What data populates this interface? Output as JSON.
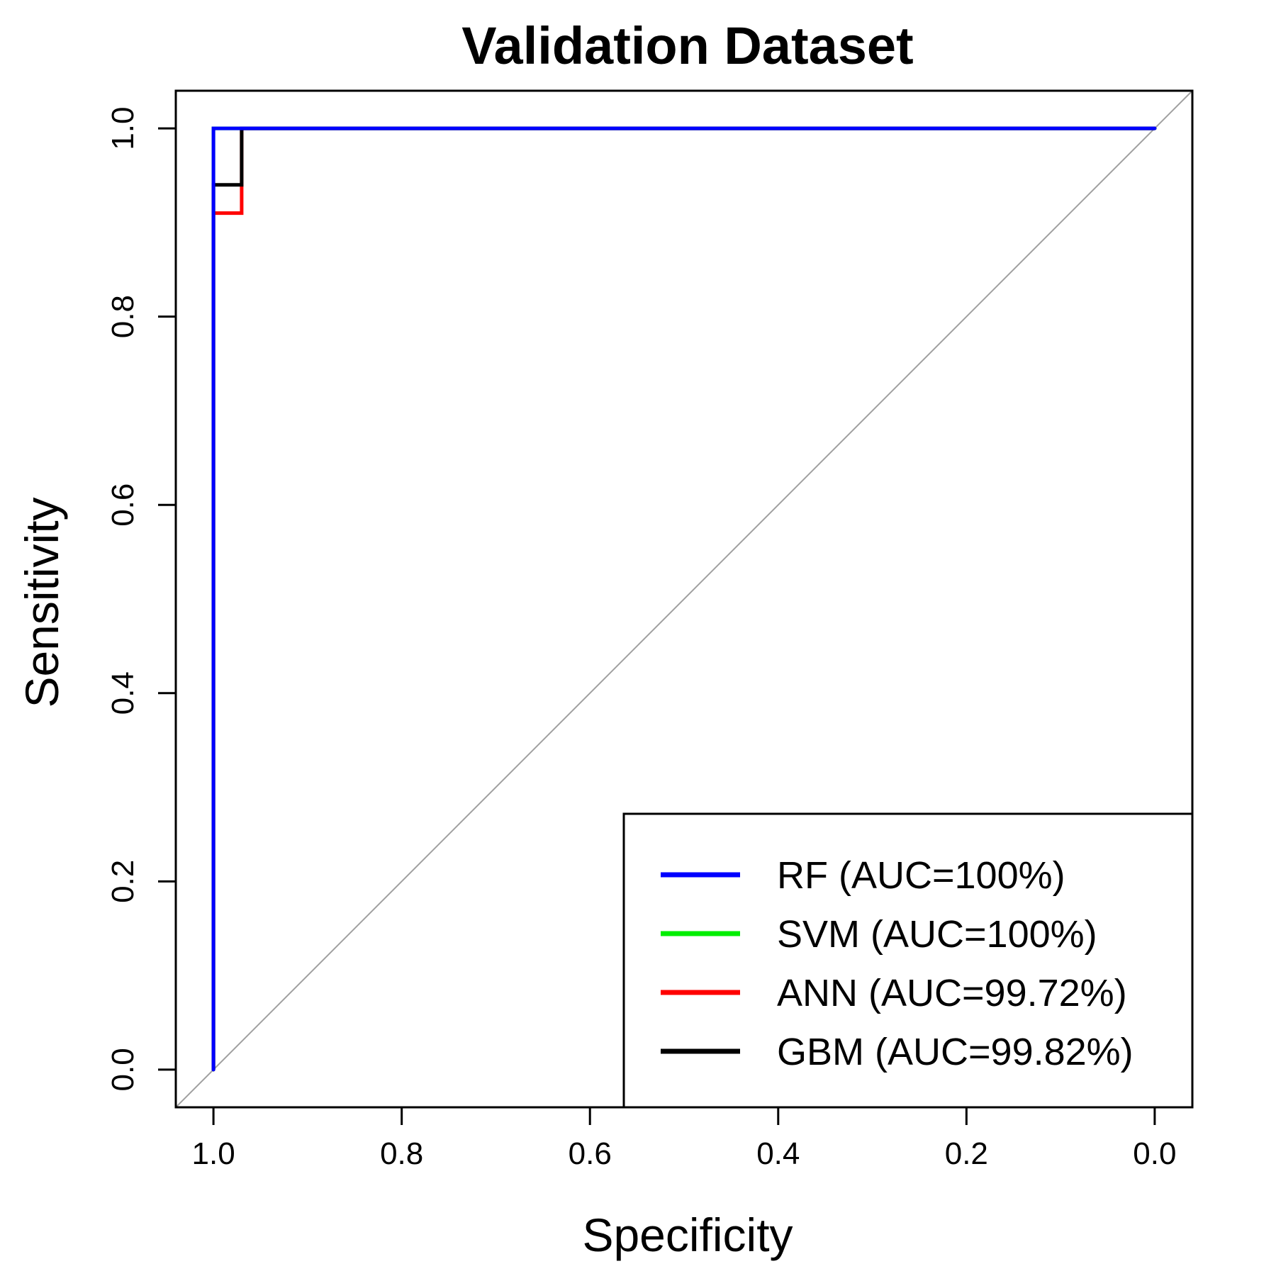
{
  "chart_data": {
    "type": "line",
    "title": "Validation Dataset",
    "xlabel": "Specificity",
    "ylabel": "Sensitivity",
    "x_reversed": true,
    "xlim": [
      1.04,
      -0.04
    ],
    "ylim": [
      -0.04,
      1.04
    ],
    "x_ticks": [
      "1.0",
      "0.8",
      "0.6",
      "0.4",
      "0.2",
      "0.0"
    ],
    "y_ticks": [
      "0.0",
      "0.2",
      "0.4",
      "0.6",
      "0.8",
      "1.0"
    ],
    "grid": false,
    "reference_line": {
      "from": [
        1,
        0
      ],
      "to": [
        0,
        1
      ],
      "color": "#a0a0a0"
    },
    "legend_position": "bottom-right",
    "series": [
      {
        "name": "ANN (AUC=99.72%)",
        "color": "#ff0000",
        "x": [
          1.0,
          1.0,
          0.97,
          0.97,
          0.0
        ],
        "y": [
          0.0,
          0.91,
          0.91,
          1.0,
          1.0
        ]
      },
      {
        "name": "SVM (AUC=100%)",
        "color": "#00ee00",
        "x": [
          1.0,
          1.0,
          0.97,
          0.0
        ],
        "y": [
          0.0,
          1.0,
          1.0,
          1.0
        ]
      },
      {
        "name": "GBM (AUC=99.82%)",
        "color": "#000000",
        "x": [
          1.0,
          1.0,
          0.97,
          0.97,
          0.0
        ],
        "y": [
          0.0,
          0.94,
          0.94,
          1.0,
          1.0
        ]
      },
      {
        "name": "RF (AUC=100%)",
        "color": "#0000ff",
        "x": [
          1.0,
          1.0,
          0.97,
          0.0
        ],
        "y": [
          0.0,
          1.0,
          1.0,
          1.0
        ]
      }
    ],
    "legend_order": [
      "RF (AUC=100%)",
      "SVM (AUC=100%)",
      "ANN (AUC=99.72%)",
      "GBM (AUC=99.82%)"
    ],
    "legend_colors": [
      "#0000ff",
      "#00ee00",
      "#ff0000",
      "#000000"
    ]
  }
}
